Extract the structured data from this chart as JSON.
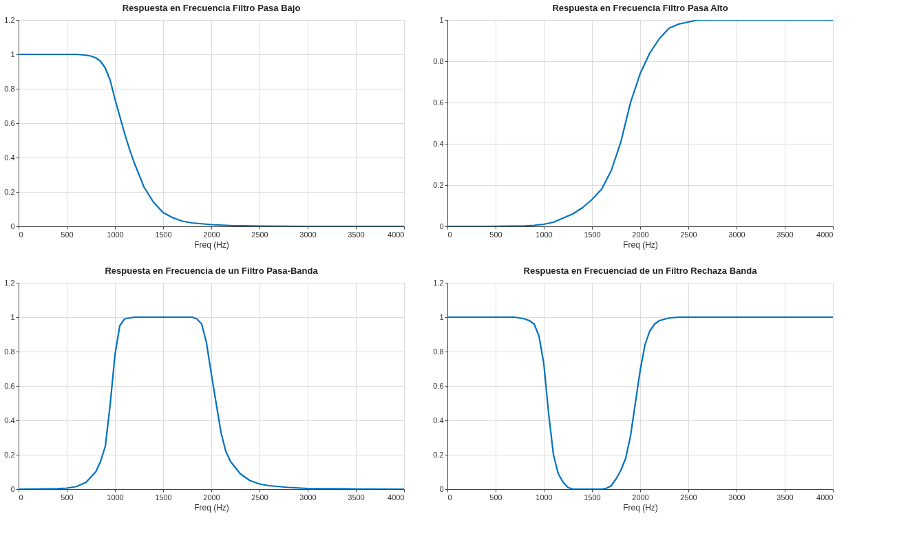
{
  "chart_data": [
    {
      "type": "line",
      "title": "Respuesta en Frecuencia Filtro Pasa Bajo",
      "xlabel": "Freq (Hz)",
      "color": "#0072bd",
      "grid": true,
      "xlim": [
        0,
        4000
      ],
      "xticks": [
        0,
        500,
        1000,
        1500,
        2000,
        2500,
        3000,
        3500,
        4000
      ],
      "ylim": [
        0,
        1.2
      ],
      "yticks": [
        0,
        0.2,
        0.4,
        0.6,
        0.8,
        1,
        1.2
      ],
      "x": [
        0,
        200,
        400,
        600,
        700,
        750,
        800,
        850,
        900,
        950,
        1000,
        1050,
        1100,
        1150,
        1200,
        1300,
        1400,
        1500,
        1600,
        1700,
        1800,
        2000,
        2200,
        2500,
        3000,
        3500,
        4000
      ],
      "values": [
        1,
        1,
        1,
        1,
        0.995,
        0.99,
        0.98,
        0.96,
        0.92,
        0.85,
        0.74,
        0.64,
        0.54,
        0.45,
        0.37,
        0.23,
        0.14,
        0.08,
        0.05,
        0.03,
        0.02,
        0.01,
        0.005,
        0.002,
        0,
        0,
        0
      ]
    },
    {
      "type": "line",
      "title": "Respuesta en Frecuencia Filtro Pasa Alto",
      "xlabel": "Freq (Hz)",
      "color": "#0072bd",
      "grid": true,
      "xlim": [
        0,
        4000
      ],
      "xticks": [
        0,
        500,
        1000,
        1500,
        2000,
        2500,
        3000,
        3500,
        4000
      ],
      "ylim": [
        0,
        1
      ],
      "yticks": [
        0,
        0.2,
        0.4,
        0.6,
        0.8,
        1
      ],
      "x": [
        0,
        400,
        800,
        900,
        1000,
        1100,
        1200,
        1300,
        1400,
        1500,
        1600,
        1700,
        1800,
        1900,
        2000,
        2100,
        2200,
        2300,
        2400,
        2500,
        2600,
        3000,
        3500,
        4000
      ],
      "values": [
        0,
        0,
        0.002,
        0.005,
        0.01,
        0.02,
        0.04,
        0.06,
        0.09,
        0.13,
        0.18,
        0.27,
        0.41,
        0.6,
        0.74,
        0.84,
        0.91,
        0.96,
        0.98,
        0.99,
        1,
        1,
        1,
        1
      ]
    },
    {
      "type": "line",
      "title": "Respuesta en Frecuencia de un Filtro Pasa-Banda",
      "xlabel": "Freq (Hz)",
      "color": "#0072bd",
      "grid": true,
      "xlim": [
        0,
        4000
      ],
      "xticks": [
        0,
        500,
        1000,
        1500,
        2000,
        2500,
        3000,
        3500,
        4000
      ],
      "ylim": [
        0,
        1.2
      ],
      "yticks": [
        0,
        0.2,
        0.4,
        0.6,
        0.8,
        1,
        1.2
      ],
      "x": [
        0,
        400,
        500,
        600,
        700,
        800,
        850,
        900,
        950,
        1000,
        1050,
        1100,
        1200,
        1500,
        1800,
        1850,
        1900,
        1950,
        2000,
        2050,
        2100,
        2150,
        2200,
        2300,
        2400,
        2500,
        2600,
        2800,
        3000,
        3500,
        4000
      ],
      "values": [
        0,
        0.003,
        0.006,
        0.015,
        0.04,
        0.1,
        0.16,
        0.25,
        0.49,
        0.78,
        0.95,
        0.99,
        1,
        1,
        1,
        0.99,
        0.96,
        0.85,
        0.67,
        0.5,
        0.33,
        0.22,
        0.16,
        0.09,
        0.05,
        0.03,
        0.02,
        0.01,
        0.004,
        0.001,
        0
      ]
    },
    {
      "type": "line",
      "title": "Respuesta en Frecuenciad de un Filtro Rechaza Banda",
      "xlabel": "Freq (Hz)",
      "color": "#0072bd",
      "grid": true,
      "xlim": [
        0,
        4000
      ],
      "xticks": [
        0,
        500,
        1000,
        1500,
        2000,
        2500,
        3000,
        3500,
        4000
      ],
      "ylim": [
        0,
        1.2
      ],
      "yticks": [
        0,
        0.2,
        0.4,
        0.6,
        0.8,
        1,
        1.2
      ],
      "x": [
        0,
        700,
        800,
        850,
        900,
        950,
        1000,
        1050,
        1100,
        1150,
        1200,
        1250,
        1300,
        1600,
        1650,
        1700,
        1750,
        1800,
        1850,
        1900,
        1950,
        2000,
        2050,
        2100,
        2150,
        2200,
        2300,
        2400,
        4000
      ],
      "values": [
        1,
        1,
        0.99,
        0.98,
        0.96,
        0.89,
        0.73,
        0.44,
        0.2,
        0.09,
        0.04,
        0.01,
        0,
        0,
        0.005,
        0.02,
        0.06,
        0.11,
        0.18,
        0.31,
        0.5,
        0.69,
        0.84,
        0.92,
        0.96,
        0.98,
        0.995,
        1,
        1
      ]
    }
  ]
}
